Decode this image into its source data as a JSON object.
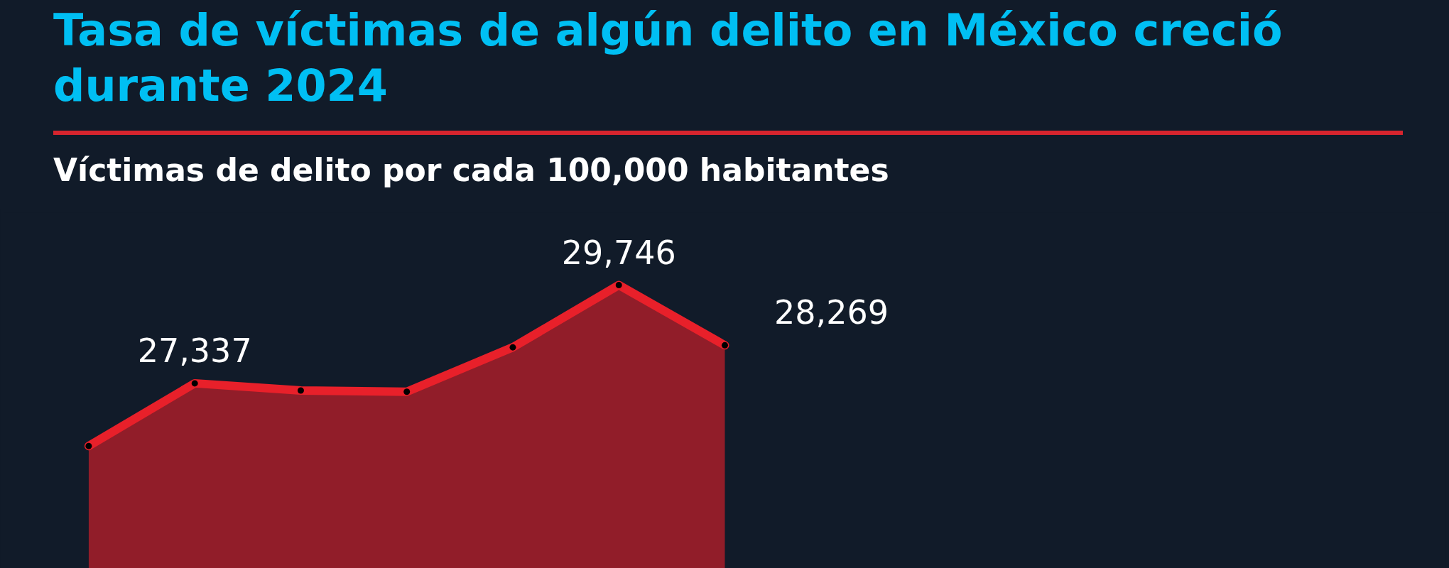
{
  "chart_data": {
    "type": "area",
    "title": "Tasa de víctimas de algún delito en México creció durante 2024",
    "subtitle": "Víctimas de delito por cada 100,000 habitantes",
    "categories": [
      null,
      null,
      null,
      null,
      null,
      null,
      null
    ],
    "series": [
      {
        "color": "#e8202a",
        "values": [
          25800,
          27337,
          27160,
          27130,
          28220,
          29746,
          28269
        ],
        "value_labels": [
          null,
          "27,337",
          null,
          null,
          null,
          "29,746",
          "28,269"
        ]
      }
    ],
    "tick_labels": false,
    "grid": false,
    "marker": "circle",
    "line_style": "solid"
  }
}
